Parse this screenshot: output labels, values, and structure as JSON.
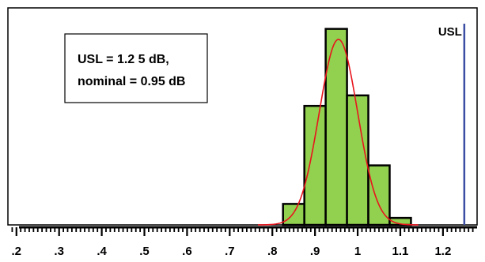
{
  "chart_data": {
    "type": "bar",
    "subtype": "histogram",
    "xlim": [
      0.18,
      1.28
    ],
    "ylim": [
      0,
      62
    ],
    "bin_width": 0.05,
    "bins": [
      {
        "x": 0.85,
        "count": 6
      },
      {
        "x": 0.9,
        "count": 34
      },
      {
        "x": 0.95,
        "count": 56
      },
      {
        "x": 1.0,
        "count": 37
      },
      {
        "x": 1.05,
        "count": 17
      },
      {
        "x": 1.1,
        "count": 2
      }
    ],
    "fit_curve": {
      "type": "normal",
      "mean": 0.955,
      "sd": 0.045,
      "peak": 53
    },
    "tick_labels": [
      {
        "value": 0.2,
        "label": ".2"
      },
      {
        "value": 0.3,
        "label": ".3"
      },
      {
        "value": 0.4,
        "label": ".4"
      },
      {
        "value": 0.5,
        "label": ".5"
      },
      {
        "value": 0.6,
        "label": ".6"
      },
      {
        "value": 0.7,
        "label": ".7"
      },
      {
        "value": 0.8,
        "label": ".8"
      },
      {
        "value": 0.9,
        "label": ".9"
      },
      {
        "value": 1.0,
        "label": "1"
      },
      {
        "value": 1.1,
        "label": "1.1"
      },
      {
        "value": 1.2,
        "label": "1.2"
      }
    ],
    "usl": {
      "value": 1.25,
      "label": "USL"
    },
    "annotation": [
      "USL = 1.2 5 dB,",
      "nominal = 0.95 dB"
    ],
    "colors": {
      "bar_fill": "#92d050",
      "bar_stroke": "#000000",
      "curve": "#e8141c",
      "usl_line": "#3b4ea3"
    }
  }
}
